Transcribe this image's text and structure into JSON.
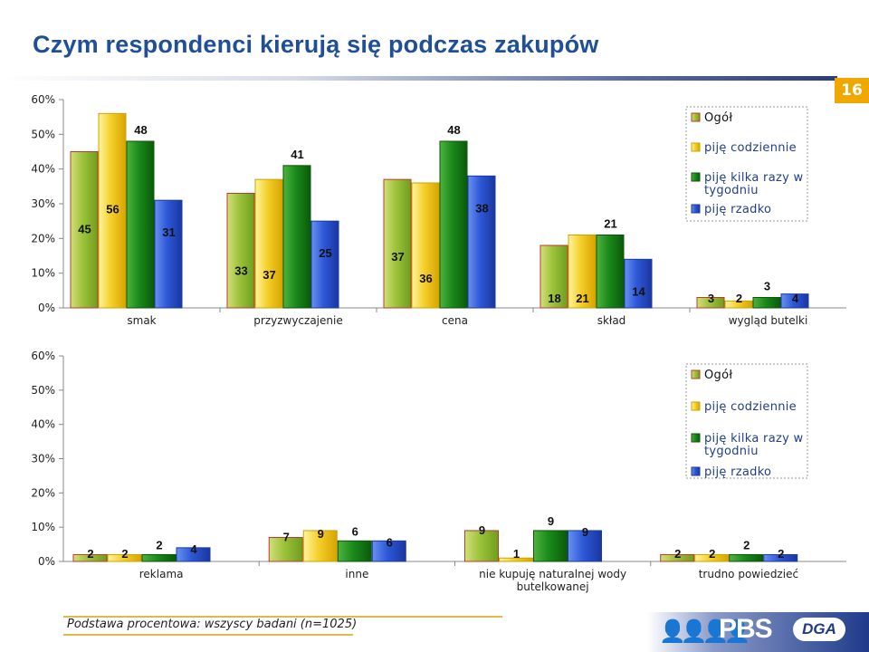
{
  "header": {
    "title": "Czym respondenci kierują się podczas zakupów",
    "page_number": "16"
  },
  "footer": {
    "note": "Podstawa procentowa: wszyscy badani (n=1025)",
    "logo_text": "PBS",
    "logo_badge": "DGA"
  },
  "colors": {
    "ogol": "#d85a2a",
    "codziennie": "#e8c21e",
    "kilka_razy": "#1e8a1e",
    "rzadko": "#2d58d8",
    "title": "#1f4f99"
  },
  "chart_data": [
    {
      "type": "bar",
      "yticks": [
        "0%",
        "10%",
        "20%",
        "30%",
        "40%",
        "50%",
        "60%"
      ],
      "ylim": [
        0,
        60
      ],
      "legend_position": "top-right",
      "categories": [
        "smak",
        "przyzwyczajenie",
        "cena",
        "skład",
        "wygląd butelki"
      ],
      "series": [
        {
          "name": "Ogół",
          "values": [
            45,
            33,
            37,
            18,
            3
          ]
        },
        {
          "name": "piję codziennie",
          "values": [
            56,
            37,
            36,
            21,
            2
          ]
        },
        {
          "name": "piję kilka razy w tygodniu",
          "values": [
            48,
            41,
            48,
            21,
            3
          ]
        },
        {
          "name": "piję rzadko",
          "values": [
            31,
            25,
            38,
            14,
            4
          ]
        }
      ]
    },
    {
      "type": "bar",
      "yticks": [
        "0%",
        "10%",
        "20%",
        "30%",
        "40%",
        "50%",
        "60%"
      ],
      "ylim": [
        0,
        60
      ],
      "legend_position": "top-right",
      "categories": [
        "reklama",
        "inne",
        "nie kupuję naturalnej wody butelkowanej",
        "trudno powiedzieć"
      ],
      "series": [
        {
          "name": "Ogół",
          "values": [
            2,
            7,
            9,
            2
          ]
        },
        {
          "name": "piję codziennie",
          "values": [
            2,
            9,
            1,
            2
          ]
        },
        {
          "name": "piję kilka razy w tygodniu",
          "values": [
            2,
            6,
            9,
            2
          ]
        },
        {
          "name": "piję rzadko",
          "values": [
            4,
            6,
            9,
            2
          ]
        }
      ]
    }
  ]
}
